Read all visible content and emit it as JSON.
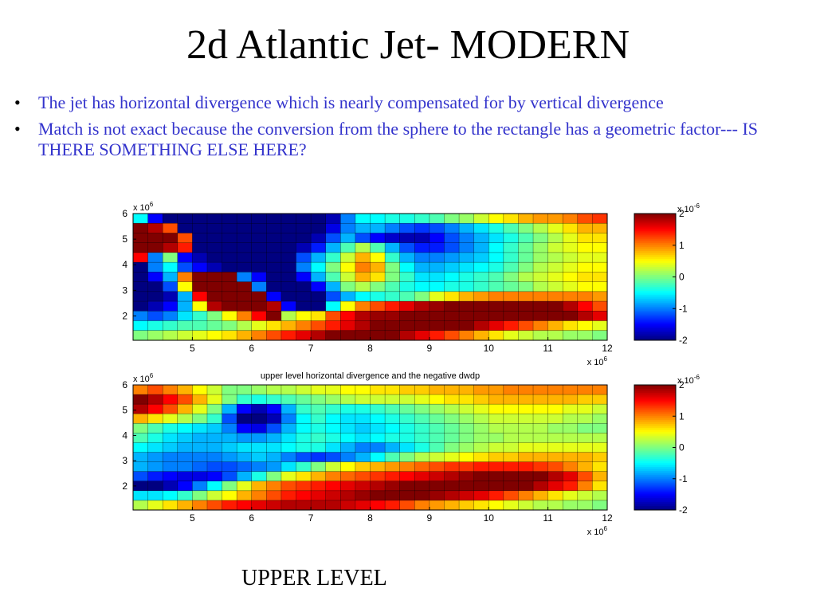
{
  "slide": {
    "title": "2d Atlantic Jet- MODERN",
    "bullets": [
      {
        "bullet": "•",
        "text": "The jet has horizontal divergence which is nearly compensated for by vertical divergence"
      },
      {
        "bullet": "•",
        "text": "Match is not exact because the conversion from the sphere to the rectangle has a geometric factor--- IS THERE SOMETHING ELSE HERE?"
      }
    ],
    "footer": "UPPER LEVEL",
    "text_color": "#3333cc"
  },
  "chart_data": [
    {
      "type": "heatmap",
      "title": "",
      "xlabel": "",
      "ylabel": "",
      "x_multiplier": "x 10^6",
      "y_multiplier": "x 10^6",
      "x_ticks": [
        5,
        6,
        7,
        8,
        9,
        10,
        11,
        12
      ],
      "y_ticks": [
        2,
        3,
        4,
        5,
        6
      ],
      "xlim": [
        4,
        12
      ],
      "ylim": [
        1.05,
        6.0
      ],
      "colorbar": {
        "multiplier": "x 10^-6",
        "ticks": [
          -2,
          -1,
          0,
          1,
          2
        ],
        "range": [
          -2,
          2
        ],
        "colormap": "jet"
      },
      "grid": true,
      "values": [
        [
          -0.5,
          -1.5,
          -2.0,
          -2.0,
          -2.0,
          -2.0,
          -2.0,
          -2.0,
          -2.0,
          -2.0,
          -2.0,
          -2.0,
          -2.0,
          -1.8,
          -1.0,
          -0.5,
          -0.5,
          -0.4,
          -0.4,
          -0.3,
          -0.2,
          0.0,
          0.1,
          0.3,
          0.5,
          0.6,
          0.8,
          0.9,
          0.9,
          1.0,
          1.2,
          1.3
        ],
        [
          2.0,
          1.8,
          1.2,
          -2.0,
          -2.0,
          -2.0,
          -2.0,
          -2.0,
          -2.0,
          -2.0,
          -2.0,
          -2.0,
          -2.0,
          -1.6,
          -1.0,
          -0.8,
          -0.8,
          -1.0,
          -1.2,
          -1.3,
          -1.2,
          -1.0,
          -0.8,
          -0.6,
          -0.4,
          -0.2,
          0.0,
          0.2,
          0.4,
          0.6,
          0.8,
          0.8
        ],
        [
          2.0,
          2.0,
          2.0,
          1.2,
          -2.0,
          -2.0,
          -2.0,
          -2.0,
          -2.0,
          -2.0,
          -2.0,
          -2.0,
          -1.8,
          -1.2,
          -0.8,
          -1.2,
          -1.5,
          -1.7,
          -1.8,
          -1.8,
          -1.5,
          -1.2,
          -1.0,
          -0.8,
          -0.6,
          -0.4,
          -0.2,
          0.0,
          0.2,
          0.4,
          0.6,
          0.6
        ],
        [
          2.0,
          2.0,
          1.8,
          1.4,
          -2.0,
          -2.0,
          -2.0,
          -2.0,
          -2.0,
          -2.0,
          -2.0,
          -1.8,
          -1.4,
          -0.8,
          -0.2,
          0.2,
          -0.2,
          -0.8,
          -1.2,
          -1.4,
          -1.4,
          -1.2,
          -1.0,
          -0.8,
          -0.5,
          -0.3,
          -0.1,
          0.1,
          0.3,
          0.4,
          0.5,
          0.5
        ],
        [
          1.5,
          -1.0,
          0.0,
          -1.5,
          -1.8,
          -2.0,
          -2.0,
          -2.0,
          -2.0,
          -2.0,
          -2.0,
          -1.2,
          -0.8,
          -0.3,
          0.3,
          0.8,
          0.5,
          -0.3,
          -0.8,
          -1.0,
          -1.0,
          -0.9,
          -0.8,
          -0.7,
          -0.5,
          -0.3,
          -0.1,
          0.1,
          0.2,
          0.3,
          0.4,
          0.4
        ],
        [
          -2.0,
          -1.0,
          -0.5,
          -1.2,
          -1.5,
          -1.8,
          -2.0,
          -2.0,
          -2.0,
          -2.0,
          -2.0,
          -1.0,
          -0.5,
          0.0,
          0.5,
          1.0,
          0.8,
          0.0,
          -0.5,
          -0.8,
          -0.8,
          -0.7,
          -0.6,
          -0.5,
          -0.4,
          -0.2,
          0.0,
          0.2,
          0.3,
          0.4,
          0.5,
          0.5
        ],
        [
          -2.0,
          -1.5,
          -0.8,
          1.0,
          2.0,
          2.0,
          2.0,
          -1.0,
          -1.5,
          -2.0,
          -2.0,
          -1.5,
          -0.8,
          -0.2,
          0.3,
          0.8,
          0.6,
          0.0,
          -0.3,
          -0.6,
          -0.6,
          -0.5,
          -0.4,
          -0.3,
          -0.2,
          0.0,
          0.2,
          0.3,
          0.4,
          0.5,
          0.6,
          0.6
        ],
        [
          -2.0,
          -2.0,
          -1.2,
          0.5,
          2.0,
          2.0,
          2.0,
          2.0,
          -1.0,
          -2.0,
          -2.0,
          -2.0,
          -1.5,
          -0.8,
          0.0,
          0.2,
          0.0,
          -0.2,
          -0.4,
          -0.5,
          -0.5,
          -0.4,
          -0.4,
          -0.3,
          -0.2,
          -0.1,
          0.0,
          0.2,
          0.3,
          0.4,
          0.5,
          0.5
        ],
        [
          -2.0,
          -2.0,
          -1.8,
          -0.8,
          1.5,
          2.0,
          2.0,
          2.0,
          2.0,
          -1.5,
          -2.0,
          -2.0,
          -2.0,
          -1.2,
          -0.8,
          -0.5,
          -0.4,
          -0.3,
          -0.2,
          0.0,
          0.4,
          0.6,
          0.8,
          0.9,
          1.0,
          1.0,
          1.0,
          1.0,
          1.0,
          1.0,
          1.0,
          0.9
        ],
        [
          -2.0,
          -1.8,
          -1.5,
          -0.8,
          0.5,
          1.8,
          2.0,
          2.0,
          2.0,
          1.8,
          -1.5,
          -2.0,
          -2.0,
          -0.5,
          0.5,
          1.0,
          1.2,
          1.4,
          1.6,
          1.8,
          1.9,
          2.0,
          2.0,
          2.0,
          2.0,
          2.0,
          2.0,
          2.0,
          2.0,
          1.8,
          1.5,
          1.2
        ],
        [
          -1.0,
          -1.2,
          -1.0,
          -0.6,
          -0.3,
          0.0,
          0.5,
          1.0,
          1.5,
          2.0,
          0.2,
          0.5,
          0.6,
          1.2,
          1.5,
          1.8,
          1.9,
          1.9,
          2.0,
          2.0,
          2.0,
          2.0,
          2.0,
          2.0,
          2.0,
          2.0,
          2.0,
          2.0,
          2.0,
          2.0,
          1.8,
          1.6
        ],
        [
          -0.5,
          -0.4,
          -0.3,
          -0.2,
          -0.2,
          -0.1,
          0.0,
          0.2,
          0.4,
          0.6,
          0.8,
          1.0,
          1.2,
          1.4,
          1.6,
          1.8,
          2.0,
          2.0,
          2.0,
          2.0,
          2.0,
          2.0,
          2.0,
          1.8,
          1.6,
          1.4,
          1.2,
          1.0,
          0.8,
          0.6,
          0.5,
          0.4
        ],
        [
          0.0,
          0.1,
          0.2,
          0.3,
          0.4,
          0.5,
          0.6,
          0.8,
          1.0,
          1.2,
          1.4,
          1.6,
          1.8,
          2.0,
          2.0,
          2.0,
          2.0,
          2.0,
          1.8,
          1.6,
          1.4,
          1.2,
          1.0,
          0.8,
          0.6,
          0.4,
          0.3,
          0.2,
          0.2,
          0.1,
          0.1,
          0.0
        ]
      ]
    },
    {
      "type": "heatmap",
      "title": "upper level horizontal divergence and the negative dwdp",
      "xlabel": "",
      "ylabel": "",
      "x_multiplier": "x 10^6",
      "y_multiplier": "x 10^6",
      "x_ticks": [
        5,
        6,
        7,
        8,
        9,
        10,
        11,
        12
      ],
      "y_ticks": [
        2,
        3,
        4,
        5,
        6
      ],
      "xlim": [
        4,
        12
      ],
      "ylim": [
        1.05,
        6.0
      ],
      "colorbar": {
        "multiplier": "x 10^-6",
        "ticks": [
          -2,
          -1,
          0,
          1,
          2
        ],
        "range": [
          -2,
          2
        ],
        "colormap": "jet"
      },
      "grid": true,
      "values": [
        [
          1.0,
          1.2,
          1.0,
          0.8,
          0.5,
          0.3,
          0.0,
          0.0,
          0.1,
          0.2,
          0.2,
          0.3,
          0.4,
          0.4,
          0.5,
          0.5,
          0.6,
          0.6,
          0.7,
          0.7,
          0.8,
          0.8,
          0.8,
          0.9,
          0.9,
          1.0,
          1.0,
          1.0,
          1.0,
          1.0,
          1.0,
          1.0
        ],
        [
          2.0,
          1.8,
          1.5,
          1.2,
          0.8,
          0.4,
          0.0,
          -0.3,
          -0.4,
          -0.3,
          -0.2,
          -0.1,
          0.0,
          0.1,
          0.2,
          0.3,
          0.3,
          0.3,
          0.3,
          0.4,
          0.5,
          0.6,
          0.6,
          0.7,
          0.8,
          0.8,
          0.8,
          0.8,
          0.8,
          0.8,
          0.7,
          0.7
        ],
        [
          1.8,
          1.5,
          1.2,
          0.8,
          0.4,
          0.0,
          -0.8,
          -1.5,
          -1.8,
          -1.5,
          -0.8,
          -0.3,
          -0.2,
          -0.3,
          -0.4,
          -0.4,
          -0.3,
          -0.2,
          -0.1,
          0.0,
          0.1,
          0.2,
          0.3,
          0.4,
          0.5,
          0.5,
          0.5,
          0.5,
          0.5,
          0.4,
          0.4,
          0.3
        ],
        [
          0.8,
          0.6,
          0.4,
          0.2,
          0.0,
          -0.3,
          -1.2,
          -2.0,
          -2.0,
          -1.8,
          -1.0,
          -0.5,
          -0.3,
          -0.5,
          -0.6,
          -0.6,
          -0.5,
          -0.4,
          -0.3,
          -0.2,
          -0.1,
          0.0,
          0.1,
          0.2,
          0.3,
          0.3,
          0.3,
          0.3,
          0.3,
          0.2,
          0.2,
          0.1
        ],
        [
          0.0,
          -0.2,
          -0.4,
          -0.5,
          -0.6,
          -0.7,
          -1.0,
          -1.5,
          -1.6,
          -1.2,
          -0.8,
          -0.5,
          -0.4,
          -0.5,
          -0.6,
          -0.7,
          -0.6,
          -0.5,
          -0.4,
          -0.3,
          -0.2,
          -0.1,
          0.0,
          0.1,
          0.2,
          0.2,
          0.2,
          0.2,
          0.1,
          0.1,
          0.0,
          0.0
        ],
        [
          -0.2,
          -0.4,
          -0.6,
          -0.7,
          -0.8,
          -0.8,
          -0.8,
          -0.9,
          -0.9,
          -0.8,
          -0.6,
          -0.4,
          -0.3,
          -0.4,
          -0.5,
          -0.6,
          -0.5,
          -0.4,
          -0.4,
          -0.3,
          -0.2,
          -0.1,
          0.0,
          0.1,
          0.1,
          0.2,
          0.2,
          0.2,
          0.2,
          0.2,
          0.2,
          0.2
        ],
        [
          -0.5,
          -0.6,
          -0.7,
          -0.8,
          -0.8,
          -0.8,
          -0.7,
          -0.6,
          -0.6,
          -0.6,
          -0.5,
          -0.4,
          -0.4,
          -0.6,
          -0.8,
          -1.0,
          -1.0,
          -0.8,
          -0.6,
          -0.4,
          -0.2,
          0.0,
          0.1,
          0.2,
          0.3,
          0.3,
          0.4,
          0.4,
          0.4,
          0.4,
          0.4,
          0.4
        ],
        [
          -0.8,
          -0.9,
          -1.0,
          -1.0,
          -1.0,
          -1.0,
          -0.9,
          -0.8,
          -0.7,
          -0.8,
          -1.0,
          -1.2,
          -1.3,
          -1.2,
          -1.0,
          -0.8,
          -0.5,
          -0.2,
          0.0,
          0.2,
          0.3,
          0.4,
          0.5,
          0.6,
          0.7,
          0.7,
          0.8,
          0.8,
          0.8,
          0.8,
          0.8,
          0.7
        ],
        [
          -0.8,
          -0.9,
          -1.0,
          -1.0,
          -1.1,
          -1.2,
          -1.2,
          -1.1,
          -1.0,
          -0.9,
          -0.6,
          -0.3,
          0.0,
          0.3,
          0.5,
          0.7,
          0.8,
          0.9,
          1.0,
          1.1,
          1.2,
          1.3,
          1.3,
          1.4,
          1.4,
          1.4,
          1.4,
          1.3,
          1.2,
          1.0,
          0.8,
          0.6
        ],
        [
          -1.2,
          -1.4,
          -1.5,
          -1.6,
          -1.6,
          -1.5,
          -1.2,
          -0.8,
          -0.4,
          0.0,
          0.4,
          0.6,
          0.8,
          1.0,
          1.1,
          1.2,
          1.3,
          1.4,
          1.5,
          1.6,
          1.7,
          1.8,
          1.9,
          2.0,
          2.0,
          2.0,
          2.0,
          2.0,
          1.8,
          1.6,
          1.2,
          0.8
        ],
        [
          -2.0,
          -2.0,
          -1.8,
          -1.5,
          -1.0,
          -0.5,
          0.0,
          0.4,
          0.8,
          1.0,
          1.2,
          1.3,
          1.4,
          1.5,
          1.6,
          1.7,
          1.8,
          1.9,
          2.0,
          2.0,
          2.0,
          2.0,
          2.0,
          2.0,
          2.0,
          2.0,
          2.0,
          1.8,
          1.6,
          1.4,
          1.0,
          0.6
        ],
        [
          -0.6,
          -0.6,
          -0.5,
          -0.3,
          0.0,
          0.3,
          0.5,
          0.8,
          1.0,
          1.2,
          1.4,
          1.5,
          1.6,
          1.7,
          1.8,
          1.9,
          2.0,
          2.0,
          2.0,
          2.0,
          1.9,
          1.8,
          1.7,
          1.6,
          1.4,
          1.2,
          1.0,
          0.8,
          0.6,
          0.4,
          0.3,
          0.2
        ],
        [
          0.2,
          0.4,
          0.6,
          0.8,
          1.0,
          1.2,
          1.4,
          1.5,
          1.6,
          1.7,
          1.8,
          1.8,
          1.8,
          1.8,
          1.7,
          1.6,
          1.5,
          1.4,
          1.2,
          1.0,
          0.9,
          0.8,
          0.7,
          0.6,
          0.5,
          0.4,
          0.3,
          0.2,
          0.2,
          0.1,
          0.1,
          0.0
        ]
      ]
    }
  ]
}
